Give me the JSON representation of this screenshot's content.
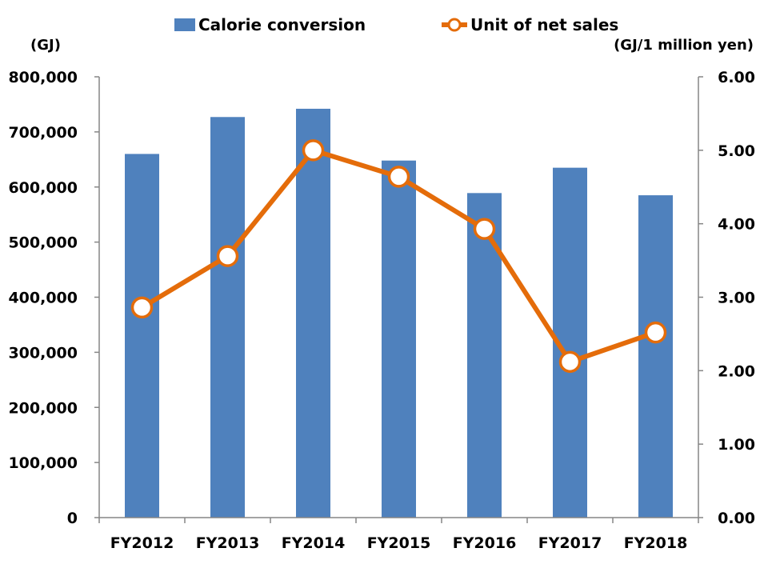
{
  "chart_data": {
    "type": "bar+line",
    "categories": [
      "FY2012",
      "FY2013",
      "FY2014",
      "FY2015",
      "FY2016",
      "FY2017",
      "FY2018"
    ],
    "series": [
      {
        "name": "Calorie conversion",
        "type": "bar",
        "axis": "left",
        "color": "#4f81bd",
        "values": [
          660000,
          727000,
          742000,
          648000,
          589000,
          635000,
          585000
        ]
      },
      {
        "name": "Unit of net sales",
        "type": "line",
        "axis": "right",
        "color": "#e46c0a",
        "values": [
          2.86,
          3.56,
          5.0,
          4.64,
          3.93,
          2.12,
          2.52
        ]
      }
    ],
    "left_axis": {
      "unit_label": "(GJ)",
      "ylim": [
        0,
        800000
      ],
      "ticks": [
        "0",
        "100,000",
        "200,000",
        "300,000",
        "400,000",
        "500,000",
        "600,000",
        "700,000",
        "800,000"
      ]
    },
    "right_axis": {
      "unit_label": "(GJ/1 million yen)",
      "ylim": [
        0,
        6
      ],
      "ticks": [
        "0.00",
        "1.00",
        "2.00",
        "3.00",
        "4.00",
        "5.00",
        "6.00"
      ]
    },
    "legend_position": "top-center",
    "grid": false
  }
}
